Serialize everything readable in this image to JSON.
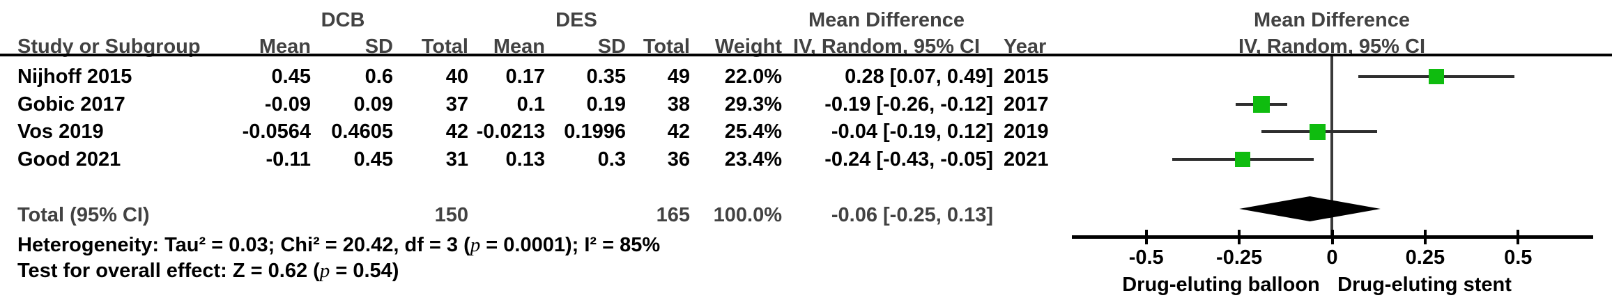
{
  "table": {
    "group_headers": {
      "dcb": "DCB",
      "des": "DES",
      "md_text": "Mean Difference",
      "md_plot": "Mean Difference"
    },
    "column_headers": {
      "study": "Study or Subgroup",
      "dcb_mean": "Mean",
      "dcb_sd": "SD",
      "dcb_total": "Total",
      "des_mean": "Mean",
      "des_sd": "SD",
      "des_total": "Total",
      "weight": "Weight",
      "ci_text": "IV, Random, 95% CI",
      "year": "Year",
      "ci_plot": "IV, Random, 95% CI"
    },
    "studies": [
      {
        "name": "Nijhoff 2015",
        "dcb_mean": "0.45",
        "dcb_sd": "0.6",
        "dcb_total": "40",
        "des_mean": "0.17",
        "des_sd": "0.35",
        "des_total": "49",
        "weight": "22.0%",
        "ci": "0.28 [0.07, 0.49]",
        "year": "2015"
      },
      {
        "name": "Gobic 2017",
        "dcb_mean": "-0.09",
        "dcb_sd": "0.09",
        "dcb_total": "37",
        "des_mean": "0.1",
        "des_sd": "0.19",
        "des_total": "38",
        "weight": "29.3%",
        "ci": "-0.19 [-0.26, -0.12]",
        "year": "2017"
      },
      {
        "name": "Vos 2019",
        "dcb_mean": "-0.0564",
        "dcb_sd": "0.4605",
        "dcb_total": "42",
        "des_mean": "-0.0213",
        "des_sd": "0.1996",
        "des_total": "42",
        "weight": "25.4%",
        "ci": "-0.04 [-0.19, 0.12]",
        "year": "2019"
      },
      {
        "name": "Good 2021",
        "dcb_mean": "-0.11",
        "dcb_sd": "0.45",
        "dcb_total": "31",
        "des_mean": "0.13",
        "des_sd": "0.3",
        "des_total": "36",
        "weight": "23.4%",
        "ci": "-0.24 [-0.43, -0.05]",
        "year": "2021"
      }
    ],
    "total_row": {
      "label": "Total (95% CI)",
      "dcb_total": "150",
      "des_total": "165",
      "weight": "100.0%",
      "ci": "-0.06 [-0.25, 0.13]"
    }
  },
  "footnotes": {
    "heterogeneity": {
      "part1": "Heterogeneity: Tau² = 0.03; Chi² = 20.42, df = 3 (",
      "p": "p",
      "part2": " = 0.0001); I² = 85%"
    },
    "overall_effect": {
      "part1": "Test for overall effect: Z = 0.62 (",
      "p": "p",
      "part2": " = 0.54)"
    }
  },
  "chart_data": {
    "type": "scatter",
    "subtype": "forest-plot",
    "title": "Mean Difference, IV, Random, 95% CI",
    "categories": [
      "Nijhoff 2015",
      "Gobic 2017",
      "Vos 2019",
      "Good 2021"
    ],
    "series": [
      {
        "name": "Mean Difference IV, Random, 95% CI",
        "values": [
          {
            "md": 0.28,
            "lo": 0.07,
            "hi": 0.49,
            "weight": 22.0,
            "year": 2015
          },
          {
            "md": -0.19,
            "lo": -0.26,
            "hi": -0.12,
            "weight": 29.3,
            "year": 2017
          },
          {
            "md": -0.04,
            "lo": -0.19,
            "hi": 0.12,
            "weight": 25.4,
            "year": 2019
          },
          {
            "md": -0.24,
            "lo": -0.43,
            "hi": -0.05,
            "weight": 23.4,
            "year": 2021
          }
        ]
      }
    ],
    "total": {
      "md": -0.06,
      "lo": -0.25,
      "hi": 0.13,
      "weight": 100.0
    },
    "xlim": [
      -0.7,
      0.7
    ],
    "xticks": [
      -0.5,
      -0.25,
      0,
      0.25,
      0.5
    ],
    "xtick_labels": [
      "-0.5",
      "-0.25",
      "0",
      "0.25",
      "0.5"
    ],
    "xlabel_left": "Drug-eluting balloon",
    "xlabel_right": "Drug-eluting stent",
    "grid": false,
    "legend": false
  },
  "colors": {
    "marker_green": "#0fbc0f",
    "diamond_black": "#000000",
    "ci_line": "#2e2e2e",
    "axis_black": "#000000",
    "zero_line": "#3a3a3a",
    "header_text": "#424242",
    "body_text": "#000000"
  }
}
